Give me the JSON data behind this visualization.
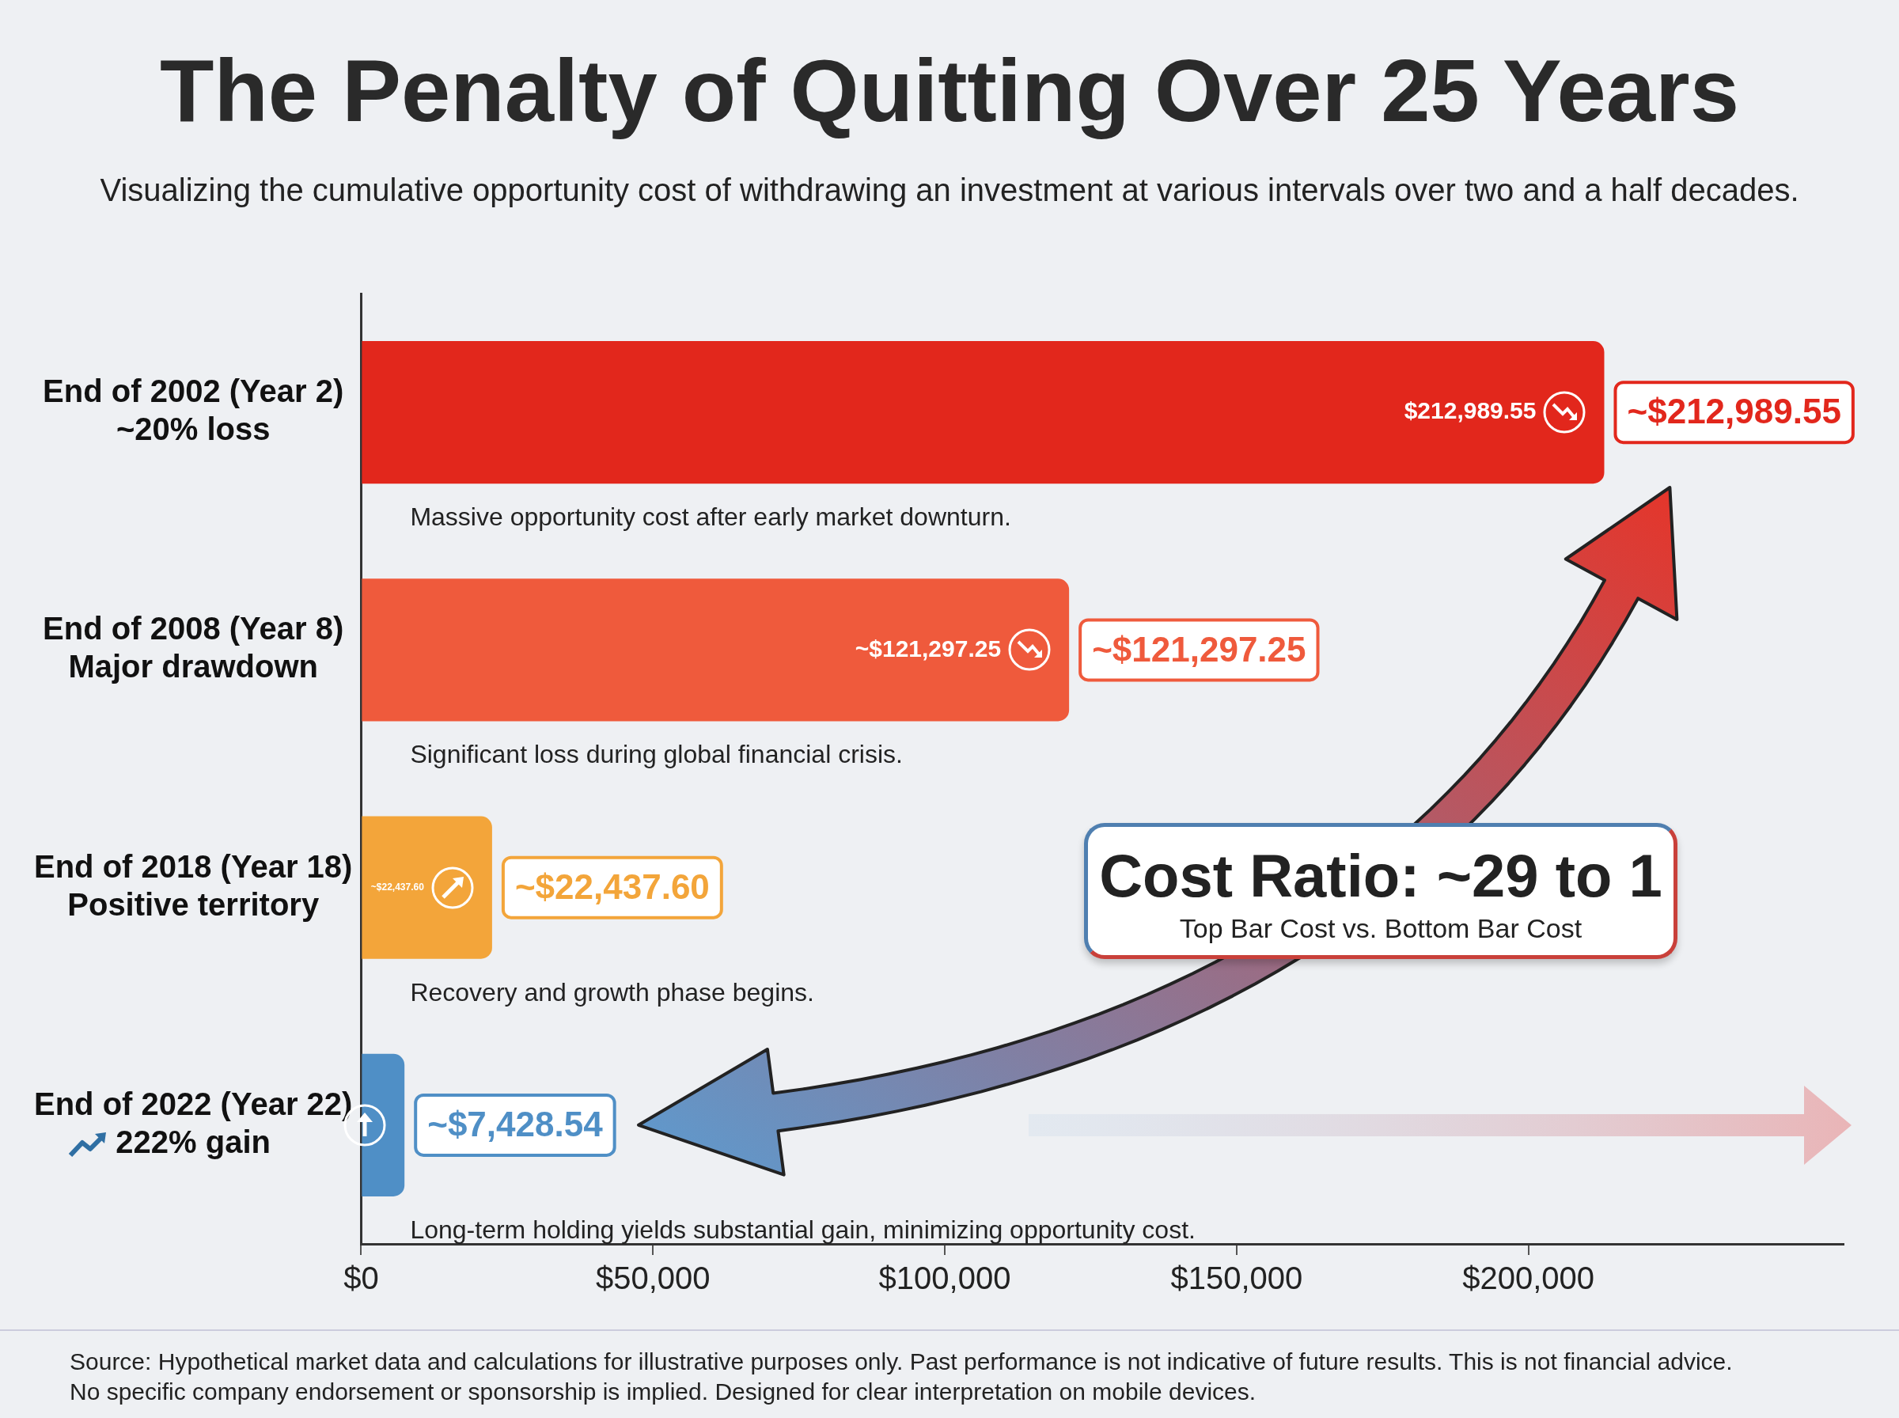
{
  "chart_data": {
    "type": "bar",
    "orientation": "horizontal",
    "title": "The Penalty of Quitting Over 25 Years",
    "subtitle": "Visualizing the cumulative opportunity cost of withdrawing an investment at various intervals over two and a half decades.",
    "categories": [
      "End of 2002 (Year 2)\n~20% loss",
      "End of 2008 (Year 8)\nMajor drawdown",
      "End of 2018 (Year 18)\nPositive territory",
      "End of 2022 (Year 22)\n222% gain"
    ],
    "values": [
      212989.55,
      121297.25,
      22437.6,
      7428.54
    ],
    "colors": [
      "#e2271c",
      "#ef5a3c",
      "#f3a53a",
      "#4f8fc6"
    ],
    "value_labels": [
      "~$212,989.55",
      "~$121,297.25",
      "~$22,437.60",
      "~$7,428.54"
    ],
    "xlim": [
      0,
      254000
    ],
    "xticks": [
      {
        "value": 0,
        "label": "$0"
      },
      {
        "value": 50000,
        "label": "$50,000"
      },
      {
        "value": 100000,
        "label": "$100,000"
      },
      {
        "value": 150000,
        "label": "$150,000"
      },
      {
        "value": 200000,
        "label": "$200,000"
      }
    ],
    "legend": false,
    "annotations": [
      {
        "text": "$212,989.55",
        "x": 212989.55,
        "y": "End of 2002 (Year 2)\n~20% loss"
      },
      {
        "text": "~$121,297.25",
        "x": 121297.25,
        "y": "End of 2008 (Year 8)\nMajor drawdown"
      },
      {
        "text": "~$22,437.60",
        "x": 22437.6,
        "y": "End of 2018 (Year 18)\nPositive territory"
      },
      "Massive opportunity cost after early market downturn.",
      "Significant loss during global financial crisis.",
      "Recovery and growth phase begins.",
      "Long-term holding yields substantial gain, minimizing opportunity cost.",
      "Cost Ratio: ~29 to 1",
      "Top Bar Cost vs. Bottom Bar Cost",
      "Source: Hypothetical market data and calculations for illustrative purposes only. Past performance is not indicative of future results. This is not financial advice.",
      "No specific company endorsement or sponsorship is implied. Designed for clear interpretation on mobile devices."
    ]
  }
}
